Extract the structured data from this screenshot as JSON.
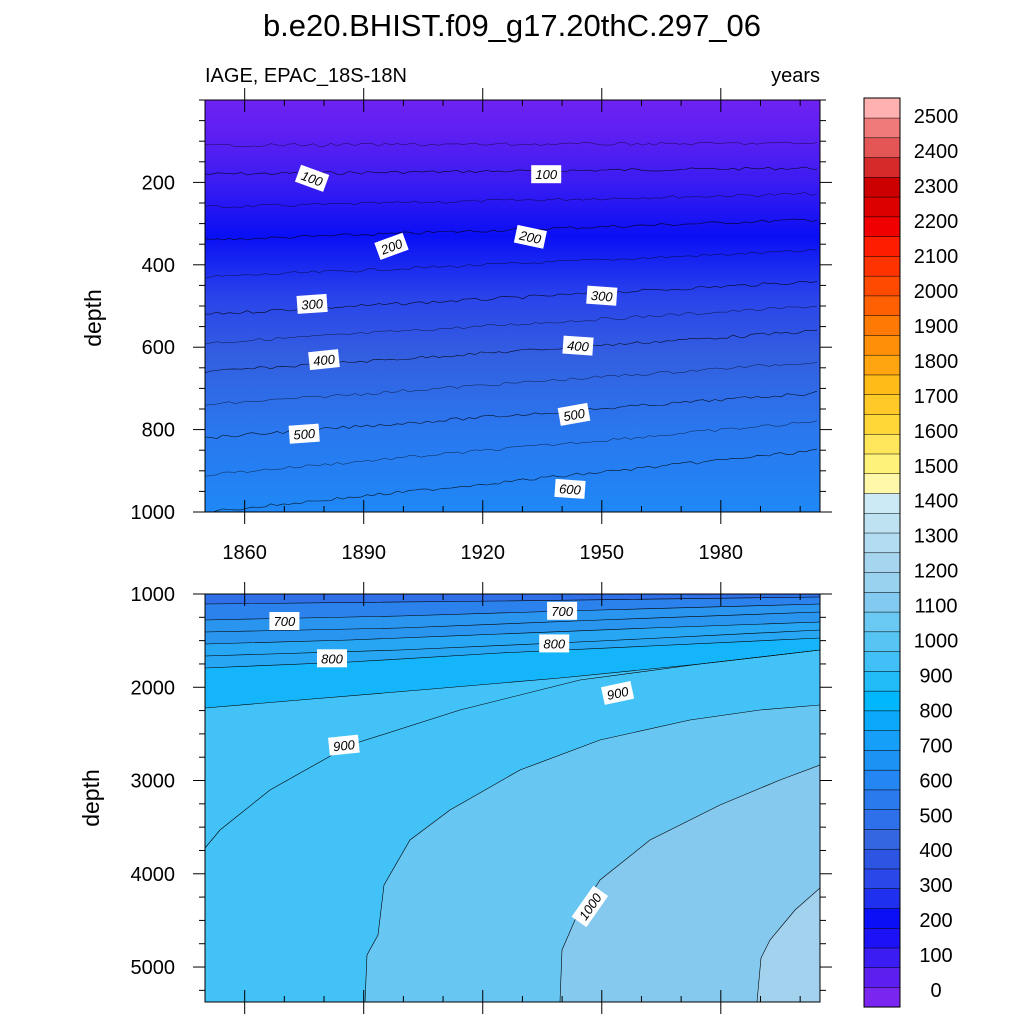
{
  "chart_data": {
    "type": "contour",
    "title": "b.e20.BHIST.f09_g17.20thC.297_06",
    "left_subtitle": "IAGE, EPAC_18S-18N",
    "right_subtitle": "years",
    "xlabel": "",
    "ylabel": "depth",
    "xlim": [
      1850,
      2005
    ],
    "x_ticks": [
      1860,
      1890,
      1920,
      1950,
      1980
    ],
    "panels": [
      {
        "name": "upper",
        "ylim": [
          0,
          1000
        ],
        "y_ticks": [
          200,
          400,
          600,
          800,
          1000
        ],
        "contour_lines": [
          {
            "level": 100,
            "depth_start": 180,
            "depth_end": 165
          },
          {
            "level": 200,
            "depth_start": 340,
            "depth_end": 290
          },
          {
            "level": 300,
            "depth_start": 520,
            "depth_end": 440
          },
          {
            "level": 400,
            "depth_start": 660,
            "depth_end": 560
          },
          {
            "level": 500,
            "depth_start": 820,
            "depth_end": 710
          },
          {
            "level": 600,
            "depth_start": 1000,
            "depth_end": 850
          }
        ],
        "contour_labels": [
          {
            "text": "100",
            "x": 1877,
            "depth": 190
          },
          {
            "text": "100",
            "x": 1936,
            "depth": 180
          },
          {
            "text": "200",
            "x": 1897,
            "depth": 355
          },
          {
            "text": "200",
            "x": 1932,
            "depth": 332
          },
          {
            "text": "300",
            "x": 1877,
            "depth": 495
          },
          {
            "text": "300",
            "x": 1950,
            "depth": 475
          },
          {
            "text": "400",
            "x": 1880,
            "depth": 630
          },
          {
            "text": "400",
            "x": 1944,
            "depth": 596
          },
          {
            "text": "500",
            "x": 1875,
            "depth": 810
          },
          {
            "text": "500",
            "x": 1943,
            "depth": 763
          },
          {
            "text": "600",
            "x": 1942,
            "depth": 944
          }
        ]
      },
      {
        "name": "lower",
        "ylim": [
          1000,
          5375
        ],
        "y_ticks": [
          1000,
          2000,
          3000,
          4000,
          5000
        ],
        "contour_labels": [
          {
            "text": "700",
            "x": 1870,
            "depth": 1290
          },
          {
            "text": "700",
            "x": 1940,
            "depth": 1180
          },
          {
            "text": "800",
            "x": 1882,
            "depth": 1690
          },
          {
            "text": "800",
            "x": 1938,
            "depth": 1530
          },
          {
            "text": "900",
            "x": 1885,
            "depth": 2620
          },
          {
            "text": "900",
            "x": 1954,
            "depth": 2060
          },
          {
            "text": "1000",
            "x": 1947,
            "depth": 4350
          }
        ]
      }
    ],
    "colorbar": {
      "labels": [
        "0",
        "100",
        "200",
        "300",
        "400",
        "500",
        "600",
        "700",
        "800",
        "900",
        "1000",
        "1100",
        "1200",
        "1300",
        "1400",
        "1500",
        "1600",
        "1700",
        "1800",
        "1900",
        "2000",
        "2100",
        "2200",
        "2300",
        "2400",
        "2500"
      ],
      "colors": [
        "#7a26f0",
        "#5d1ff0",
        "#3b1cf2",
        "#1c12f5",
        "#0a0ff5",
        "#1f31ef",
        "#2a48ea",
        "#2c55e4",
        "#3366e0",
        "#2e70ea",
        "#2a7aee",
        "#2486f2",
        "#1c92f5",
        "#159ff8",
        "#0aa9fb",
        "#00b6fc",
        "#22bcf8",
        "#40c0f6",
        "#56c5f3",
        "#6ac9f2",
        "#83caf0",
        "#98d2ee",
        "#a6d6ef",
        "#b2dcf1",
        "#bfe2f3",
        "#cceaf5",
        "#fff8a8",
        "#fff27a",
        "#ffe65a",
        "#ffd838",
        "#ffca28",
        "#ffbc18",
        "#ffa510",
        "#ff9008",
        "#ff7a05",
        "#ff6002",
        "#ff4a00",
        "#ff3300",
        "#ff1d00",
        "#f00000",
        "#dd0000",
        "#cc0000",
        "#d42a2a",
        "#e45656",
        "#f07a7a",
        "#ffb0b0"
      ]
    }
  }
}
